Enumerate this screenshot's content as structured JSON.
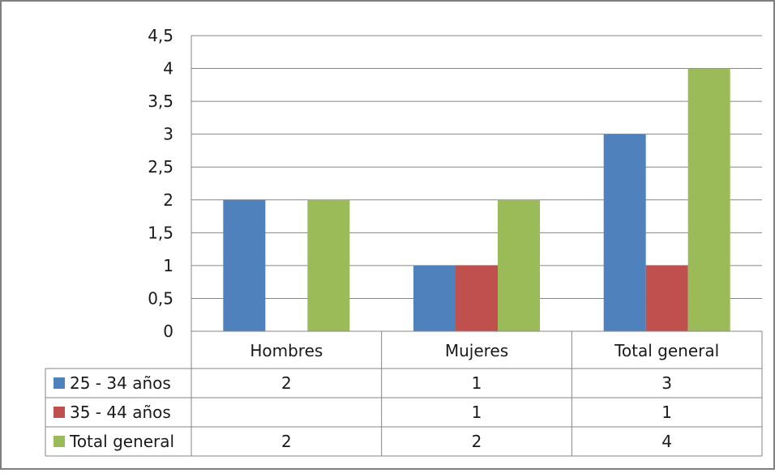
{
  "chart_data": {
    "type": "bar",
    "categories": [
      "Hombres",
      "Mujeres",
      "Total general"
    ],
    "series": [
      {
        "name": "25 - 34 años",
        "values": [
          2,
          1,
          3
        ],
        "color": "#4F81BD",
        "labels": [
          "2",
          "1",
          "3"
        ]
      },
      {
        "name": "35 - 44 años",
        "values": [
          null,
          1,
          1
        ],
        "color": "#C0504D",
        "labels": [
          "",
          "1",
          "1"
        ]
      },
      {
        "name": "Total general",
        "values": [
          2,
          2,
          4
        ],
        "color": "#9BBB59",
        "labels": [
          "2",
          "2",
          "4"
        ]
      }
    ],
    "ylim": [
      0,
      4.5
    ],
    "yticks": [
      0,
      0.5,
      1,
      1.5,
      2,
      2.5,
      3,
      3.5,
      4,
      4.5
    ],
    "ytick_labels": [
      "0",
      "0,5",
      "1",
      "1,5",
      "2",
      "2,5",
      "3",
      "3,5",
      "4",
      "4,5"
    ],
    "grid": true,
    "legend": "data-table",
    "title": "",
    "xlabel": "",
    "ylabel": ""
  }
}
